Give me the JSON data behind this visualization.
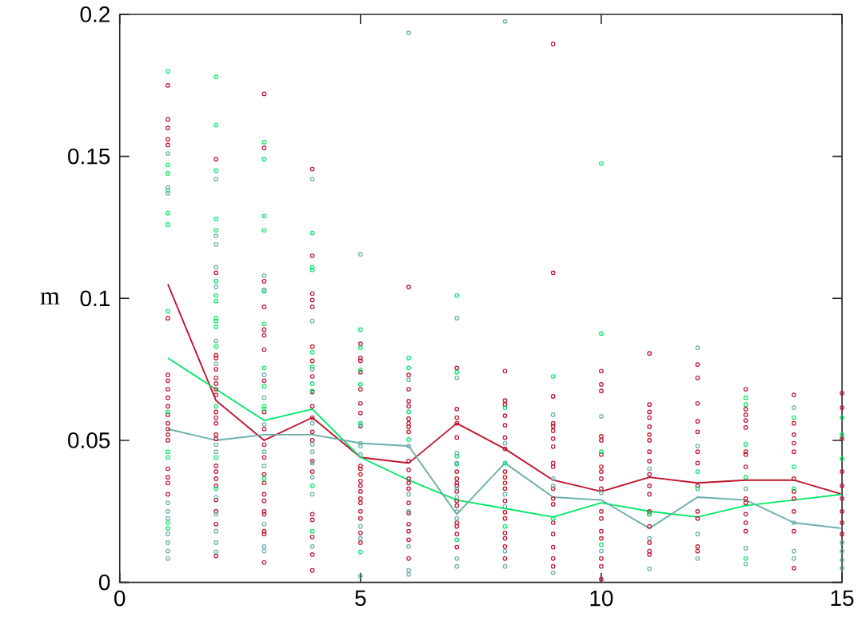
{
  "chart_data": {
    "type": "scatter",
    "ylabel": "m",
    "xlim": [
      0,
      15
    ],
    "ylim": [
      0,
      0.2
    ],
    "xticks": [
      0,
      5,
      10,
      15
    ],
    "yticks": [
      0,
      0.05,
      0.1,
      0.15,
      0.2
    ],
    "marker": "circle",
    "series": [
      {
        "color": "#c0142e",
        "x": [
          1,
          1,
          1,
          1,
          1,
          1,
          1,
          1,
          1,
          1,
          1,
          1,
          1,
          1,
          1,
          1,
          1,
          1,
          1,
          1,
          2,
          2,
          2,
          2,
          2,
          2,
          2,
          2,
          2,
          2,
          2,
          2,
          2,
          2,
          2,
          2,
          2,
          2,
          2,
          2,
          2,
          2,
          3,
          3,
          3,
          3,
          3,
          3,
          3,
          3,
          3,
          3,
          3,
          3,
          3,
          3,
          3,
          3,
          3,
          3,
          3,
          3,
          3,
          4,
          4,
          4,
          4,
          4,
          4,
          4,
          4,
          4,
          4,
          4,
          4,
          4,
          4,
          4,
          4,
          4,
          4,
          4,
          4,
          5,
          5,
          5,
          5,
          5,
          5,
          5,
          5,
          5,
          5,
          5,
          5,
          5,
          5,
          5,
          5,
          5,
          5,
          5,
          5,
          6,
          6,
          6,
          6,
          6,
          6,
          6,
          6,
          6,
          6,
          6,
          6,
          6,
          6,
          6,
          6,
          6,
          6,
          6,
          6,
          7,
          7,
          7,
          7,
          7,
          7,
          7,
          7,
          7,
          7,
          7,
          7,
          7,
          7,
          7,
          7,
          8,
          8,
          8,
          8,
          8,
          8,
          8,
          8,
          8,
          8,
          8,
          8,
          8,
          8,
          8,
          8,
          8,
          8,
          9,
          9,
          9,
          9,
          9,
          9,
          9,
          9,
          9,
          9,
          9,
          9,
          9,
          9,
          9,
          9,
          9,
          9,
          10,
          10,
          10,
          10,
          10,
          10,
          10,
          10,
          10,
          10,
          10,
          10,
          10,
          10,
          10,
          10,
          10,
          11,
          11,
          11,
          11,
          11,
          11,
          11,
          11,
          11,
          11,
          11,
          11,
          11,
          11,
          11,
          11,
          11,
          11,
          12,
          12,
          12,
          12,
          12,
          12,
          12,
          12,
          12,
          12,
          12,
          12,
          13,
          13,
          13,
          13,
          13,
          13,
          13,
          13,
          13,
          13,
          13,
          13,
          13,
          14,
          14,
          14,
          14,
          14,
          14,
          14,
          14,
          14,
          14,
          14,
          15,
          15,
          15,
          15,
          15,
          15,
          15,
          15,
          15
        ],
        "values": [
          0.175,
          0.163,
          0.16,
          0.156,
          0.154,
          0.093,
          0.073,
          0.071,
          0.068,
          0.065,
          0.062,
          0.059,
          0.056,
          0.054,
          0.052,
          0.05,
          0.04,
          0.037,
          0.035,
          0.031,
          0.149,
          0.109,
          0.08,
          0.079,
          0.075,
          0.072,
          0.07,
          0.068,
          0.066,
          0.06,
          0.058,
          0.056,
          0.052,
          0.0505,
          0.041,
          0.039,
          0.0365,
          0.034,
          0.029,
          0.025,
          0.0205,
          0.0093,
          0.172,
          0.153,
          0.106,
          0.097,
          0.089,
          0.087,
          0.082,
          0.071,
          0.06,
          0.054,
          0.0485,
          0.044,
          0.038,
          0.035,
          0.031,
          0.0287,
          0.025,
          0.024,
          0.018,
          0.017,
          0.007,
          0.1455,
          0.115,
          0.1017,
          0.0994,
          0.097,
          0.083,
          0.078,
          0.0725,
          0.067,
          0.062,
          0.058,
          0.053,
          0.05,
          0.0427,
          0.039,
          0.024,
          0.022,
          0.016,
          0.0098,
          0.0042,
          0.084,
          0.079,
          0.078,
          0.074,
          0.068,
          0.063,
          0.0596,
          0.055,
          0.041,
          0.04,
          0.038,
          0.0357,
          0.034,
          0.032,
          0.0295,
          0.028,
          0.025,
          0.0225,
          0.0174,
          0.014,
          0.104,
          0.073,
          0.068,
          0.0638,
          0.062,
          0.0576,
          0.056,
          0.0548,
          0.053,
          0.0427,
          0.0396,
          0.0365,
          0.035,
          0.033,
          0.028,
          0.0244,
          0.0205,
          0.018,
          0.015,
          0.0084,
          0.0755,
          0.061,
          0.058,
          0.056,
          0.051,
          0.039,
          0.0365,
          0.035,
          0.034,
          0.032,
          0.0287,
          0.027,
          0.021,
          0.0197,
          0.017,
          0.0124,
          0.0744,
          0.064,
          0.0626,
          0.0587,
          0.0553,
          0.051,
          0.047,
          0.039,
          0.037,
          0.035,
          0.033,
          0.0287,
          0.0247,
          0.0225,
          0.0174,
          0.0155,
          0.0126,
          0.0084,
          0.1896,
          0.109,
          0.0655,
          0.056,
          0.055,
          0.0534,
          0.0506,
          0.0478,
          0.042,
          0.0407,
          0.033,
          0.0295,
          0.0275,
          0.021,
          0.017,
          0.0124,
          0.0084,
          0.0056,
          0.0744,
          0.0697,
          0.0674,
          0.0514,
          0.05,
          0.045,
          0.0407,
          0.039,
          0.0365,
          0.033,
          0.025,
          0.0225,
          0.018,
          0.0155,
          0.0084,
          0.0056,
          0.0011,
          0.0806,
          0.0626,
          0.06,
          0.058,
          0.0548,
          0.052,
          0.05,
          0.046,
          0.0427,
          0.038,
          0.034,
          0.031,
          0.025,
          0.024,
          0.0197,
          0.014,
          0.011,
          0.0098,
          0.0767,
          0.072,
          0.063,
          0.0567,
          0.053,
          0.046,
          0.042,
          0.034,
          0.025,
          0.0225,
          0.0126,
          0.011,
          0.068,
          0.061,
          0.059,
          0.057,
          0.0545,
          0.046,
          0.045,
          0.0407,
          0.0295,
          0.028,
          0.024,
          0.021,
          0.018,
          0.066,
          0.056,
          0.052,
          0.049,
          0.046,
          0.0365,
          0.032,
          0.0295,
          0.025,
          0.018,
          0.005,
          0.0666,
          0.0615,
          0.0506,
          0.039,
          0.034,
          0.0295,
          0.025,
          0.021,
          0.017
        ]
      },
      {
        "color": "#00e868",
        "x": [
          1,
          1,
          1,
          1,
          1,
          1,
          1,
          1,
          1,
          1,
          1,
          1,
          2,
          2,
          2,
          2,
          2,
          2,
          2,
          2,
          2,
          2,
          2,
          2,
          2,
          2,
          2,
          3,
          3,
          3,
          3,
          3,
          3,
          3,
          3,
          3,
          3,
          3,
          4,
          4,
          4,
          4,
          4,
          4,
          4,
          4,
          4,
          5,
          5,
          5,
          5,
          5,
          5,
          6,
          6,
          6,
          6,
          7,
          7,
          7,
          7,
          7,
          8,
          8,
          8,
          9,
          9,
          10,
          10,
          10,
          10,
          11,
          12,
          12,
          13,
          13,
          13,
          13,
          13,
          14,
          14,
          14,
          15,
          15,
          15
        ],
        "values": [
          0.18,
          0.147,
          0.144,
          0.138,
          0.13,
          0.126,
          0.0955,
          0.06,
          0.046,
          0.044,
          0.021,
          0.019,
          0.178,
          0.161,
          0.145,
          0.128,
          0.124,
          0.106,
          0.101,
          0.099,
          0.093,
          0.092,
          0.09,
          0.083,
          0.062,
          0.044,
          0.033,
          0.155,
          0.149,
          0.129,
          0.124,
          0.1025,
          0.091,
          0.0755,
          0.069,
          0.062,
          0.061,
          0.0365,
          0.123,
          0.111,
          0.11,
          0.081,
          0.076,
          0.07,
          0.0674,
          0.034,
          0.018,
          0.089,
          0.0826,
          0.0747,
          0.0697,
          0.056,
          0.0107,
          0.079,
          0.0755,
          0.06,
          0.0503,
          0.101,
          0.074,
          0.0444,
          0.0416,
          0.015,
          0.0615,
          0.042,
          0.0197,
          0.0725,
          0.0225,
          0.1475,
          0.0876,
          0.046,
          0.0132,
          0.024,
          0.039,
          0.033,
          0.065,
          0.0626,
          0.0486,
          0.037,
          0.0084,
          0.058,
          0.0407,
          0.033,
          0.058,
          0.052,
          0.0435
        ]
      },
      {
        "color": "#68aeaa",
        "x": [
          1,
          1,
          1,
          1,
          1,
          1,
          1,
          1,
          1,
          1,
          2,
          2,
          2,
          2,
          2,
          2,
          2,
          2,
          2,
          2,
          2,
          2,
          2,
          2,
          3,
          3,
          3,
          3,
          3,
          3,
          3,
          3,
          3,
          3,
          4,
          4,
          4,
          4,
          4,
          4,
          4,
          4,
          4,
          4,
          5,
          5,
          5,
          5,
          5,
          5,
          5,
          5,
          6,
          6,
          6,
          6,
          6,
          6,
          6,
          6,
          7,
          7,
          7,
          7,
          7,
          7,
          7,
          7,
          7,
          7,
          8,
          8,
          8,
          8,
          8,
          8,
          9,
          9,
          9,
          9,
          10,
          10,
          10,
          11,
          11,
          11,
          12,
          12,
          12,
          12,
          13,
          13,
          13,
          14,
          14,
          14,
          14,
          15,
          15,
          15,
          15
        ],
        "values": [
          0.151,
          0.139,
          0.137,
          0.028,
          0.025,
          0.0225,
          0.017,
          0.014,
          0.011,
          0.0084,
          0.142,
          0.122,
          0.119,
          0.111,
          0.104,
          0.085,
          0.077,
          0.0485,
          0.046,
          0.03,
          0.024,
          0.018,
          0.014,
          0.0107,
          0.108,
          0.103,
          0.073,
          0.065,
          0.0556,
          0.046,
          0.041,
          0.0205,
          0.0126,
          0.011,
          0.142,
          0.092,
          0.075,
          0.056,
          0.0486,
          0.046,
          0.042,
          0.037,
          0.031,
          0.0126,
          0.1155,
          0.0553,
          0.049,
          0.048,
          0.045,
          0.0197,
          0.0155,
          0.0022,
          0.1935,
          0.0713,
          0.048,
          0.031,
          0.025,
          0.0126,
          0.0042,
          0.0028,
          0.093,
          0.072,
          0.0455,
          0.042,
          0.033,
          0.03,
          0.025,
          0.0225,
          0.0084,
          0.0056,
          0.1975,
          0.049,
          0.031,
          0.0267,
          0.011,
          0.0056,
          0.059,
          0.0365,
          0.034,
          0.0034,
          0.0584,
          0.0315,
          0.011,
          0.04,
          0.0155,
          0.0048,
          0.0826,
          0.048,
          0.017,
          0.0084,
          0.033,
          0.012,
          0.0065,
          0.0615,
          0.021,
          0.011,
          0.0084,
          0.014,
          0.011,
          0.0079,
          0.005
        ]
      },
      {
        "type": "line",
        "marker": "none",
        "color": "#c0142e",
        "x": [
          1,
          2,
          3,
          4,
          5,
          6,
          7,
          8,
          9,
          10,
          11,
          12,
          13,
          14,
          15
        ],
        "values": [
          0.105,
          0.064,
          0.05,
          0.058,
          0.044,
          0.042,
          0.056,
          0.047,
          0.036,
          0.032,
          0.037,
          0.035,
          0.036,
          0.036,
          0.031
        ]
      },
      {
        "type": "line",
        "marker": "none",
        "color": "#00e868",
        "x": [
          1,
          2,
          3,
          4,
          5,
          6,
          7,
          8,
          9,
          10,
          11,
          12,
          13,
          14,
          15
        ],
        "values": [
          0.079,
          0.068,
          0.057,
          0.061,
          0.044,
          0.036,
          0.029,
          0.026,
          0.023,
          0.028,
          0.025,
          0.023,
          0.027,
          0.029,
          0.031
        ]
      },
      {
        "type": "line",
        "marker": "none",
        "color": "#68aeaa",
        "x": [
          1,
          2,
          3,
          4,
          5,
          6,
          7,
          8,
          9,
          10,
          11,
          12,
          13,
          14,
          15
        ],
        "values": [
          0.054,
          0.05,
          0.052,
          0.052,
          0.049,
          0.048,
          0.024,
          0.042,
          0.03,
          0.029,
          0.019,
          0.03,
          0.029,
          0.021,
          0.019
        ]
      }
    ]
  }
}
